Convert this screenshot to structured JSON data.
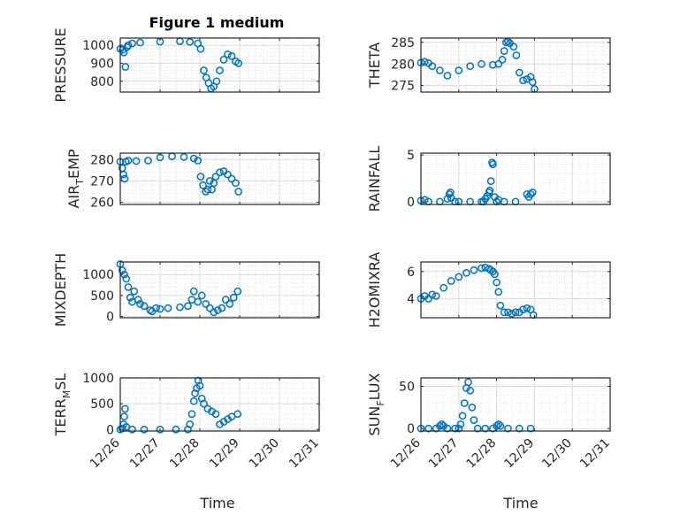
{
  "figure_title": "Figure 1 medium",
  "chart_data": [
    {
      "type": "scatter",
      "ylabel": "PRESSURE",
      "yticks": [
        800,
        900,
        1000
      ],
      "ylim": [
        740,
        1040
      ],
      "x": [
        0,
        0.06,
        0.09,
        0.13,
        0.17,
        0.2,
        0.3,
        0.5,
        1,
        1.5,
        1.75,
        1.95,
        2.02,
        2.1,
        2.16,
        2.22,
        2.28,
        2.35,
        2.42,
        2.5,
        2.6,
        2.7,
        2.8,
        2.9,
        2.97
      ],
      "values": [
        980,
        975,
        960,
        880,
        990,
        1000,
        1010,
        1015,
        1020,
        1022,
        1018,
        1010,
        980,
        860,
        820,
        790,
        760,
        770,
        800,
        860,
        920,
        950,
        940,
        910,
        900
      ]
    },
    {
      "type": "scatter",
      "ylabel": "THETA",
      "yticks": [
        275,
        280,
        285
      ],
      "ylim": [
        273.5,
        286
      ],
      "x": [
        0,
        0.1,
        0.2,
        0.3,
        0.5,
        0.7,
        1,
        1.3,
        1.6,
        1.9,
        2.05,
        2.15,
        2.2,
        2.25,
        2.3,
        2.35,
        2.45,
        2.52,
        2.6,
        2.7,
        2.8,
        2.9,
        2.95,
        3
      ],
      "values": [
        280.3,
        280.5,
        280.2,
        279.5,
        278.5,
        277.3,
        278.5,
        279.5,
        280,
        279.8,
        280,
        281,
        283,
        285,
        285.2,
        284.8,
        284,
        282,
        278,
        276.2,
        276.5,
        277,
        275.8,
        274.2
      ]
    },
    {
      "type": "scatter",
      "ylabel_main": "AIR",
      "ylabel_sub": "T",
      "ylabel_rest": "EMP",
      "yticks": [
        260,
        270,
        280
      ],
      "ylim": [
        259,
        283
      ],
      "x": [
        0,
        0.05,
        0.08,
        0.11,
        0.14,
        0.2,
        0.4,
        0.7,
        1,
        1.3,
        1.6,
        1.85,
        1.95,
        2.02,
        2.08,
        2.15,
        2.2,
        2.25,
        2.3,
        2.35,
        2.4,
        2.5,
        2.6,
        2.7,
        2.8,
        2.9,
        2.97
      ],
      "values": [
        279,
        276,
        273,
        271,
        279,
        279.5,
        279.3,
        279.5,
        281,
        281.5,
        281.2,
        280.5,
        279.5,
        272,
        268,
        265,
        266,
        270,
        266,
        269,
        272,
        274,
        274.5,
        273,
        271,
        269,
        265
      ]
    },
    {
      "type": "scatter",
      "ylabel": "RAINFALL",
      "yticks": [
        0,
        5
      ],
      "ylim": [
        -0.3,
        5.2
      ],
      "x": [
        0,
        0.1,
        0.2,
        0.5,
        0.7,
        0.75,
        0.78,
        0.8,
        0.9,
        1,
        1.3,
        1.6,
        1.65,
        1.7,
        1.75,
        1.8,
        1.82,
        1.85,
        1.88,
        1.9,
        1.95,
        2,
        2.05,
        2.2,
        2.5,
        2.8,
        2.85,
        2.9,
        2.95
      ],
      "values": [
        0.1,
        0.2,
        0,
        0,
        0.3,
        0.8,
        1,
        0.4,
        0,
        0,
        0,
        0,
        0,
        0.3,
        0.6,
        1,
        1.2,
        2.2,
        4.2,
        4,
        0.5,
        0,
        0.2,
        0,
        0,
        0.8,
        0.5,
        0.8,
        1
      ]
    },
    {
      "type": "scatter",
      "ylabel": "MIXDEPTH",
      "yticks": [
        0,
        500,
        1000
      ],
      "ylim": [
        -30,
        1300
      ],
      "x": [
        0,
        0.05,
        0.1,
        0.15,
        0.2,
        0.25,
        0.3,
        0.35,
        0.45,
        0.5,
        0.6,
        0.75,
        0.8,
        0.9,
        1,
        1.2,
        1.5,
        1.7,
        1.8,
        1.85,
        1.95,
        2.05,
        2.15,
        2.25,
        2.35,
        2.45,
        2.55,
        2.65,
        2.75,
        2.85,
        2.95
      ],
      "values": [
        1250,
        1100,
        1000,
        900,
        700,
        450,
        350,
        600,
        400,
        300,
        250,
        150,
        120,
        200,
        180,
        200,
        220,
        250,
        400,
        600,
        350,
        500,
        300,
        200,
        100,
        150,
        200,
        400,
        300,
        450,
        600
      ]
    },
    {
      "type": "scatter",
      "ylabel": "H2OMIXRA",
      "yticks": [
        4,
        6
      ],
      "ylim": [
        2.6,
        6.7
      ],
      "x": [
        0,
        0.1,
        0.2,
        0.3,
        0.4,
        0.6,
        0.8,
        1,
        1.2,
        1.4,
        1.6,
        1.7,
        1.8,
        1.85,
        1.9,
        1.95,
        2,
        2.05,
        2.1,
        2.2,
        2.3,
        2.4,
        2.5,
        2.6,
        2.7,
        2.8,
        2.9,
        2.97
      ],
      "values": [
        4,
        4.2,
        4,
        4.3,
        4.2,
        4.8,
        5.3,
        5.6,
        5.9,
        6.1,
        6.25,
        6.3,
        6.2,
        6.1,
        6,
        5.8,
        5.2,
        4.5,
        3.5,
        3,
        3,
        2.9,
        3,
        3,
        3.2,
        3.3,
        3.2,
        2.8
      ]
    },
    {
      "type": "scatter",
      "ylabel_main": "TERR",
      "ylabel_sub": "M",
      "ylabel_rest": "SL",
      "yticks": [
        0,
        500,
        1000
      ],
      "ylim": [
        -30,
        1000
      ],
      "x": [
        0,
        0.05,
        0.08,
        0.1,
        0.12,
        0.15,
        0.3,
        0.6,
        1,
        1.4,
        1.7,
        1.75,
        1.8,
        1.85,
        1.88,
        1.92,
        1.96,
        2,
        2.05,
        2.1,
        2.2,
        2.3,
        2.4,
        2.5,
        2.6,
        2.7,
        2.8,
        2.95
      ],
      "values": [
        0,
        20,
        100,
        250,
        400,
        50,
        0,
        0,
        0,
        0,
        0,
        100,
        300,
        550,
        700,
        800,
        950,
        850,
        600,
        500,
        400,
        350,
        300,
        100,
        150,
        200,
        250,
        300
      ]
    },
    {
      "type": "scatter",
      "ylabel_main": "SUN",
      "ylabel_sub": "F",
      "ylabel_rest": "LUX",
      "yticks": [
        0,
        50
      ],
      "ylim": [
        -3,
        60
      ],
      "x": [
        0,
        0.2,
        0.4,
        0.5,
        0.55,
        0.6,
        0.7,
        0.9,
        1,
        1.05,
        1.1,
        1.15,
        1.2,
        1.25,
        1.3,
        1.35,
        1.4,
        1.5,
        1.7,
        1.9,
        2,
        2.05,
        2.1,
        2.3,
        2.6,
        2.9
      ],
      "values": [
        0,
        0,
        0,
        3,
        5,
        3,
        0,
        0,
        0,
        5,
        15,
        30,
        48,
        55,
        45,
        25,
        10,
        0,
        0,
        0,
        3,
        5,
        3,
        0,
        0,
        0
      ]
    }
  ],
  "xticks": [
    "12/26",
    "12/27",
    "12/28",
    "12/29",
    "12/30",
    "12/31"
  ],
  "xlabel": "Time",
  "colors": {
    "marker": "#0072BD",
    "axis": "#262626",
    "grid": "#dcdcdc"
  }
}
